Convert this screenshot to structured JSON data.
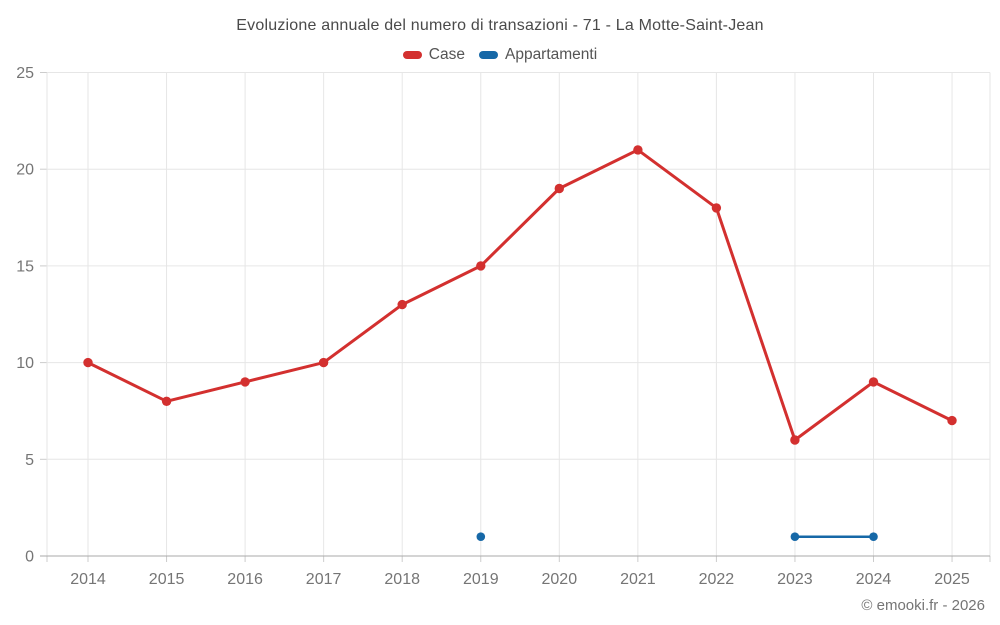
{
  "title": "Evoluzione annuale del numero di transazioni - 71 - La Motte-Saint-Jean",
  "footer": "© emooki.fr - 2026",
  "colors": {
    "case_red": "#d3302f",
    "appartamenti_blue": "#1668a7",
    "gridline": "#e6e6e6",
    "axis_line": "#aaaaaa",
    "tick": "#cccccc",
    "axis_label": "#757575",
    "title_text": "#4a4a4a",
    "legend_text": "#555555"
  },
  "chart_data": {
    "type": "line",
    "title": "Evoluzione annuale del numero di transazioni - 71 - La Motte-Saint-Jean",
    "x": [
      2014,
      2015,
      2016,
      2017,
      2018,
      2019,
      2020,
      2021,
      2022,
      2023,
      2024,
      2025
    ],
    "series": [
      {
        "name": "Case",
        "color": "#d3302f",
        "values": [
          10,
          8,
          9,
          10,
          13,
          15,
          19,
          21,
          18,
          6,
          9,
          7
        ]
      },
      {
        "name": "Appartamenti",
        "color": "#1668a7",
        "values": [
          null,
          null,
          null,
          null,
          null,
          1,
          null,
          null,
          null,
          1,
          1,
          null
        ]
      }
    ],
    "xlabel": "",
    "ylabel": "",
    "ylim": [
      0,
      25
    ],
    "yticks": [
      0,
      5,
      10,
      15,
      20,
      25
    ],
    "grid": true,
    "legend_position": "top",
    "legend": [
      "Case",
      "Appartamenti"
    ]
  }
}
